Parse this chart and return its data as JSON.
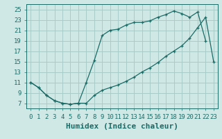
{
  "xlabel": "Humidex (Indice chaleur)",
  "background_color": "#cfe8e5",
  "grid_color": "#a8ccc8",
  "line_color": "#1a6b66",
  "xlim": [
    -0.5,
    23.5
  ],
  "ylim": [
    6.0,
    26.0
  ],
  "xticks": [
    0,
    1,
    2,
    3,
    4,
    5,
    6,
    7,
    8,
    9,
    10,
    11,
    12,
    13,
    14,
    15,
    16,
    17,
    18,
    19,
    20,
    21,
    22,
    23
  ],
  "yticks": [
    7,
    9,
    11,
    13,
    15,
    17,
    19,
    21,
    23,
    25
  ],
  "line1_x": [
    0,
    1,
    2,
    3,
    4,
    5,
    6,
    7,
    8,
    9,
    10,
    11,
    12,
    13,
    14,
    15,
    16,
    17,
    18,
    19,
    20,
    21,
    22
  ],
  "line1_y": [
    11.0,
    10.0,
    8.5,
    7.5,
    7.0,
    6.8,
    7.0,
    11.0,
    15.2,
    20.0,
    21.0,
    21.2,
    22.0,
    22.5,
    22.5,
    22.8,
    23.5,
    24.0,
    24.7,
    24.2,
    23.5,
    24.5,
    19.0
  ],
  "line2_x": [
    0,
    1,
    2,
    3,
    4,
    5,
    6,
    7,
    8,
    9,
    10,
    11,
    12,
    13,
    14,
    15,
    16,
    17,
    18,
    19,
    20,
    21,
    22,
    23
  ],
  "line2_y": [
    11.0,
    10.0,
    8.5,
    7.5,
    7.0,
    6.8,
    7.0,
    7.0,
    8.5,
    9.5,
    10.0,
    10.5,
    11.2,
    12.0,
    13.0,
    13.8,
    14.8,
    16.0,
    17.0,
    18.0,
    19.5,
    21.5,
    23.5,
    15.0
  ],
  "font_family": "monospace",
  "xlabel_fontsize": 8,
  "tick_fontsize": 6.5
}
